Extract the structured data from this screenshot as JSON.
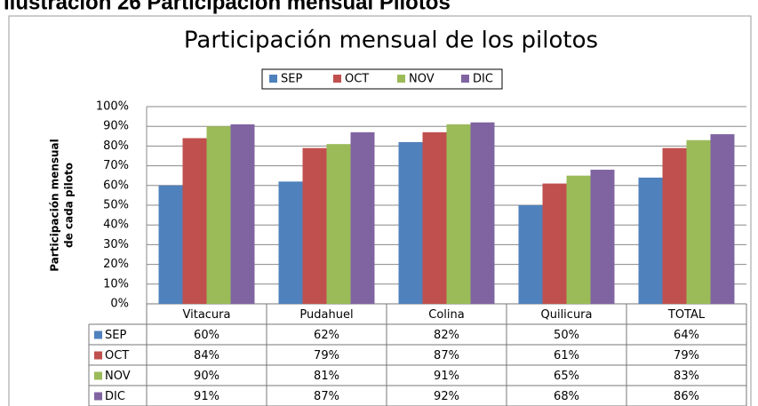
{
  "caption": "Ilustración 26 Participación mensual Pilotos",
  "chart_data": {
    "type": "bar",
    "title": "Participación mensual de los pilotos",
    "y_label": [
      "Participación mensual",
      "de cada piloto"
    ],
    "categories": [
      "Vitacura",
      "Pudahuel",
      "Colina",
      "Quilicura",
      "TOTAL"
    ],
    "series": [
      {
        "name": "SEP",
        "color": "#4f81bd",
        "values": [
          60,
          62,
          82,
          50,
          64
        ],
        "value_labels": [
          "60%",
          "62%",
          "82%",
          "50%",
          "64%"
        ]
      },
      {
        "name": "OCT",
        "color": "#c0504d",
        "values": [
          84,
          79,
          87,
          61,
          79
        ],
        "value_labels": [
          "84%",
          "79%",
          "87%",
          "61%",
          "79%"
        ]
      },
      {
        "name": "NOV",
        "color": "#9bbb59",
        "values": [
          90,
          81,
          91,
          65,
          83
        ],
        "value_labels": [
          "90%",
          "81%",
          "91%",
          "65%",
          "83%"
        ]
      },
      {
        "name": "DIC",
        "color": "#8064a2",
        "values": [
          91,
          87,
          92,
          68,
          86
        ],
        "value_labels": [
          "91%",
          "87%",
          "92%",
          "68%",
          "86%"
        ]
      }
    ],
    "ylim": [
      0,
      100
    ],
    "yticks": [
      {
        "value": 0,
        "label": "0%"
      },
      {
        "value": 10,
        "label": "10%"
      },
      {
        "value": 20,
        "label": "20%"
      },
      {
        "value": 30,
        "label": "30%"
      },
      {
        "value": 40,
        "label": "40%"
      },
      {
        "value": 50,
        "label": "50%"
      },
      {
        "value": 60,
        "label": "60%"
      },
      {
        "value": 70,
        "label": "70%"
      },
      {
        "value": 80,
        "label": "80%"
      },
      {
        "value": 90,
        "label": "90%"
      },
      {
        "value": 100,
        "label": "100%"
      }
    ],
    "grid": true,
    "legend": "top"
  }
}
